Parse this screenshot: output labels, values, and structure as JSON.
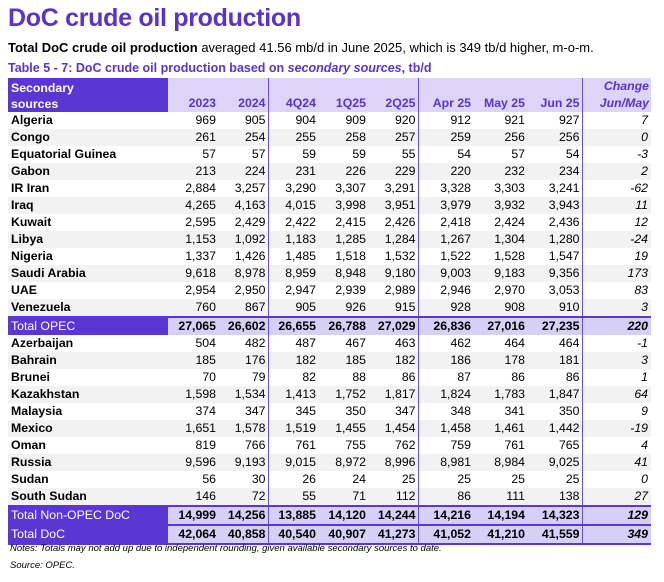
{
  "title": "DoC crude oil production",
  "subtitle": {
    "bold": "Total DoC crude oil production",
    "rest": " averaged 41.56 mb/d in June 2025, which is 349 tb/d higher, m-o-m."
  },
  "caption": {
    "prefix": "Table 5 - 7: DoC crude oil production based on ",
    "italic": "secondary sources",
    "suffix": ", tb/d"
  },
  "colors": {
    "accent": "#5a36d2",
    "header_bg": "#dcd5f8",
    "total_bg": "#d6cff6"
  },
  "header": {
    "label_line1": "Secondary",
    "label_line2": "sources",
    "columns": [
      "2023",
      "2024",
      "4Q24",
      "1Q25",
      "2Q25",
      "Apr 25",
      "May 25",
      "Jun 25"
    ],
    "change_line1": "Change",
    "change_line2": "Jun/May"
  },
  "rows": [
    {
      "name": "Algeria",
      "values": [
        "969",
        "905",
        "904",
        "909",
        "920",
        "912",
        "921",
        "927"
      ],
      "change": "7"
    },
    {
      "name": "Congo",
      "values": [
        "261",
        "254",
        "255",
        "258",
        "257",
        "259",
        "256",
        "256"
      ],
      "change": "0"
    },
    {
      "name": "Equatorial Guinea",
      "values": [
        "57",
        "57",
        "59",
        "59",
        "55",
        "54",
        "57",
        "54"
      ],
      "change": "-3"
    },
    {
      "name": "Gabon",
      "values": [
        "213",
        "224",
        "231",
        "226",
        "229",
        "220",
        "232",
        "234"
      ],
      "change": "2"
    },
    {
      "name": "IR Iran",
      "values": [
        "2,884",
        "3,257",
        "3,290",
        "3,307",
        "3,291",
        "3,328",
        "3,303",
        "3,241"
      ],
      "change": "-62"
    },
    {
      "name": "Iraq",
      "values": [
        "4,265",
        "4,163",
        "4,015",
        "3,998",
        "3,951",
        "3,979",
        "3,932",
        "3,943"
      ],
      "change": "11"
    },
    {
      "name": "Kuwait",
      "values": [
        "2,595",
        "2,429",
        "2,422",
        "2,415",
        "2,426",
        "2,418",
        "2,424",
        "2,436"
      ],
      "change": "12"
    },
    {
      "name": "Libya",
      "values": [
        "1,153",
        "1,092",
        "1,183",
        "1,285",
        "1,284",
        "1,267",
        "1,304",
        "1,280"
      ],
      "change": "-24"
    },
    {
      "name": "Nigeria",
      "values": [
        "1,337",
        "1,426",
        "1,485",
        "1,518",
        "1,532",
        "1,522",
        "1,528",
        "1,547"
      ],
      "change": "19"
    },
    {
      "name": "Saudi Arabia",
      "values": [
        "9,618",
        "8,978",
        "8,959",
        "8,948",
        "9,180",
        "9,003",
        "9,183",
        "9,356"
      ],
      "change": "173"
    },
    {
      "name": "UAE",
      "values": [
        "2,954",
        "2,950",
        "2,947",
        "2,939",
        "2,989",
        "2,946",
        "2,970",
        "3,053"
      ],
      "change": "83"
    },
    {
      "name": "Venezuela",
      "values": [
        "760",
        "867",
        "905",
        "926",
        "915",
        "928",
        "908",
        "910"
      ],
      "change": "3"
    },
    {
      "name": "Total  OPEC",
      "values": [
        "27,065",
        "26,602",
        "26,655",
        "26,788",
        "27,029",
        "26,836",
        "27,016",
        "27,235"
      ],
      "change": "220",
      "total": true
    },
    {
      "name": "Azerbaijan",
      "values": [
        "504",
        "482",
        "487",
        "467",
        "463",
        "462",
        "464",
        "464"
      ],
      "change": "-1"
    },
    {
      "name": "Bahrain",
      "values": [
        "185",
        "176",
        "182",
        "185",
        "182",
        "186",
        "178",
        "181"
      ],
      "change": "3"
    },
    {
      "name": "Brunei",
      "values": [
        "70",
        "79",
        "82",
        "88",
        "86",
        "87",
        "86",
        "86"
      ],
      "change": "1"
    },
    {
      "name": "Kazakhstan",
      "values": [
        "1,598",
        "1,534",
        "1,413",
        "1,752",
        "1,817",
        "1,824",
        "1,783",
        "1,847"
      ],
      "change": "64"
    },
    {
      "name": "Malaysia",
      "values": [
        "374",
        "347",
        "345",
        "350",
        "347",
        "348",
        "341",
        "350"
      ],
      "change": "9"
    },
    {
      "name": "Mexico",
      "values": [
        "1,651",
        "1,578",
        "1,519",
        "1,455",
        "1,454",
        "1,458",
        "1,461",
        "1,442"
      ],
      "change": "-19"
    },
    {
      "name": "Oman",
      "values": [
        "819",
        "766",
        "761",
        "755",
        "762",
        "759",
        "761",
        "765"
      ],
      "change": "4"
    },
    {
      "name": "Russia",
      "values": [
        "9,596",
        "9,193",
        "9,015",
        "8,972",
        "8,996",
        "8,981",
        "8,984",
        "9,025"
      ],
      "change": "41"
    },
    {
      "name": "Sudan",
      "values": [
        "56",
        "30",
        "26",
        "24",
        "25",
        "25",
        "25",
        "25"
      ],
      "change": "0"
    },
    {
      "name": "South Sudan",
      "values": [
        "146",
        "72",
        "55",
        "71",
        "112",
        "86",
        "111",
        "138"
      ],
      "change": "27"
    },
    {
      "name": "Total Non-OPEC DoC",
      "values": [
        "14,999",
        "14,256",
        "13,885",
        "14,120",
        "14,244",
        "14,216",
        "14,194",
        "14,323"
      ],
      "change": "129",
      "total": true
    },
    {
      "name": "Total DoC",
      "values": [
        "42,064",
        "40,858",
        "40,540",
        "40,907",
        "41,273",
        "41,052",
        "41,210",
        "41,559"
      ],
      "change": "349",
      "total": true
    }
  ],
  "notes": "Notes: Totals may not add up due to independent rounding, given available secondary sources to date.",
  "source": "Source: OPEC."
}
